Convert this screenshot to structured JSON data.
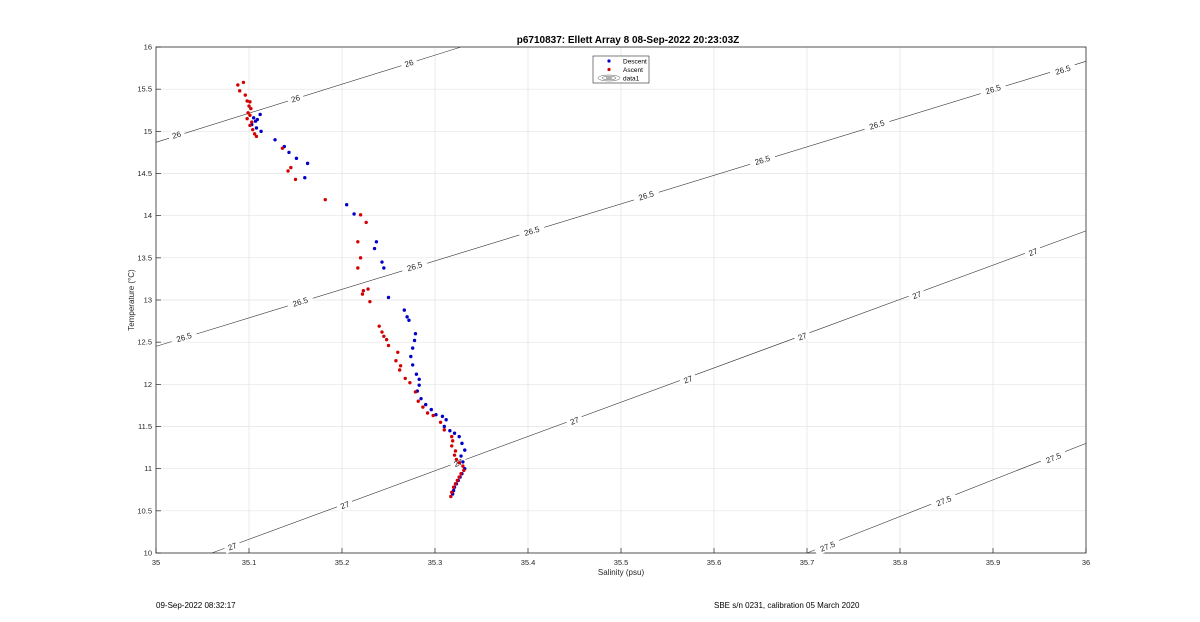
{
  "footer": {
    "left": "09-Sep-2022 08:32:17",
    "right": "SBE s/n 0231, calibration 05 March 2020"
  },
  "chart_data": {
    "type": "scatter",
    "title": "p6710837: Ellett Array 8 08-Sep-2022 20:23:03Z",
    "xlabel": "Salinity (psu)",
    "ylabel": "Temperature (°C)",
    "xlim": [
      35,
      36
    ],
    "ylim": [
      10,
      16
    ],
    "xticks": [
      "35",
      "35.1",
      "35.2",
      "35.3",
      "35.4",
      "35.5",
      "35.6",
      "35.7",
      "35.8",
      "35.9",
      "36"
    ],
    "yticks": [
      "10",
      "10.5",
      "11",
      "11.5",
      "12",
      "12.5",
      "13",
      "13.5",
      "14",
      "14.5",
      "15",
      "15.5",
      "16"
    ],
    "grid": true,
    "legend": {
      "placement": "top-center",
      "entries": [
        "Descent",
        "Ascent",
        "data1"
      ]
    },
    "colors": {
      "descent": "#0000c8",
      "ascent": "#d20000",
      "contour": "#333333",
      "grid": "#e3e3e3"
    },
    "contours": [
      {
        "level": "26",
        "points": [
          [
            35,
            14.87
          ],
          [
            35.328,
            16.0
          ]
        ],
        "labels": [
          [
            35.022,
            14.96
          ],
          [
            35.15,
            15.39
          ],
          [
            35.272,
            15.81
          ]
        ]
      },
      {
        "level": "26.5",
        "points": [
          [
            35,
            12.45
          ],
          [
            36,
            15.83
          ]
        ],
        "labels": [
          [
            35.03,
            12.56
          ],
          [
            35.155,
            12.98
          ],
          [
            35.278,
            13.4
          ],
          [
            35.404,
            13.82
          ],
          [
            35.527,
            14.24
          ],
          [
            35.652,
            14.66
          ],
          [
            35.775,
            15.08
          ],
          [
            35.9,
            15.5
          ],
          [
            35.975,
            15.73
          ]
        ]
      },
      {
        "level": "27",
        "points": [
          [
            35.06,
            10.0
          ],
          [
            36,
            13.82
          ]
        ],
        "labels": [
          [
            35.082,
            10.08
          ],
          [
            35.203,
            10.57
          ],
          [
            35.325,
            11.07
          ],
          [
            35.45,
            11.57
          ],
          [
            35.572,
            12.06
          ],
          [
            35.695,
            12.57
          ],
          [
            35.818,
            13.06
          ],
          [
            35.943,
            13.57
          ]
        ]
      },
      {
        "level": "27.5",
        "points": [
          [
            35.7,
            10.0
          ],
          [
            36,
            11.3
          ]
        ],
        "labels": [
          [
            35.722,
            10.08
          ],
          [
            35.847,
            10.62
          ],
          [
            35.965,
            11.13
          ]
        ]
      }
    ],
    "series": [
      {
        "name": "Descent",
        "points": [
          [
            35.105,
            15.16
          ],
          [
            35.107,
            15.12
          ],
          [
            35.103,
            15.08
          ],
          [
            35.109,
            15.14
          ],
          [
            35.112,
            15.2
          ],
          [
            35.108,
            15.04
          ],
          [
            35.113,
            15.0
          ],
          [
            35.128,
            14.9
          ],
          [
            35.138,
            14.82
          ],
          [
            35.143,
            14.75
          ],
          [
            35.151,
            14.68
          ],
          [
            35.163,
            14.62
          ],
          [
            35.16,
            14.45
          ],
          [
            35.205,
            14.13
          ],
          [
            35.213,
            14.02
          ],
          [
            35.237,
            13.69
          ],
          [
            35.235,
            13.61
          ],
          [
            35.243,
            13.45
          ],
          [
            35.245,
            13.38
          ],
          [
            35.25,
            13.03
          ],
          [
            35.267,
            12.88
          ],
          [
            35.27,
            12.8
          ],
          [
            35.272,
            12.76
          ],
          [
            35.279,
            12.6
          ],
          [
            35.278,
            12.52
          ],
          [
            35.276,
            12.43
          ],
          [
            35.274,
            12.33
          ],
          [
            35.276,
            12.23
          ],
          [
            35.28,
            12.12
          ],
          [
            35.283,
            12.06
          ],
          [
            35.283,
            11.99
          ],
          [
            35.281,
            11.92
          ],
          [
            35.285,
            11.83
          ],
          [
            35.29,
            11.76
          ],
          [
            35.296,
            11.7
          ],
          [
            35.301,
            11.64
          ],
          [
            35.308,
            11.62
          ],
          [
            35.312,
            11.58
          ],
          [
            35.31,
            11.5
          ],
          [
            35.316,
            11.45
          ],
          [
            35.321,
            11.42
          ],
          [
            35.326,
            11.38
          ],
          [
            35.329,
            11.3
          ],
          [
            35.332,
            11.22
          ],
          [
            35.328,
            11.15
          ],
          [
            35.33,
            11.08
          ],
          [
            35.332,
            11.0
          ],
          [
            35.329,
            10.94
          ],
          [
            35.327,
            10.9
          ],
          [
            35.325,
            10.86
          ],
          [
            35.323,
            10.82
          ],
          [
            35.321,
            10.78
          ],
          [
            35.32,
            10.74
          ],
          [
            35.319,
            10.7
          ]
        ]
      },
      {
        "name": "Ascent",
        "points": [
          [
            35.088,
            15.55
          ],
          [
            35.094,
            15.58
          ],
          [
            35.09,
            15.48
          ],
          [
            35.096,
            15.43
          ],
          [
            35.098,
            15.36
          ],
          [
            35.101,
            15.35
          ],
          [
            35.1,
            15.3
          ],
          [
            35.102,
            15.27
          ],
          [
            35.099,
            15.22
          ],
          [
            35.101,
            15.19
          ],
          [
            35.098,
            15.15
          ],
          [
            35.103,
            15.11
          ],
          [
            35.101,
            15.07
          ],
          [
            35.104,
            15.02
          ],
          [
            35.106,
            14.97
          ],
          [
            35.108,
            14.94
          ],
          [
            35.136,
            14.8
          ],
          [
            35.145,
            14.57
          ],
          [
            35.142,
            14.53
          ],
          [
            35.15,
            14.43
          ],
          [
            35.182,
            14.19
          ],
          [
            35.22,
            14.01
          ],
          [
            35.226,
            13.92
          ],
          [
            35.217,
            13.69
          ],
          [
            35.22,
            13.5
          ],
          [
            35.217,
            13.38
          ],
          [
            35.223,
            13.11
          ],
          [
            35.228,
            13.13
          ],
          [
            35.222,
            13.07
          ],
          [
            35.23,
            12.98
          ],
          [
            35.24,
            12.69
          ],
          [
            35.243,
            12.62
          ],
          [
            35.245,
            12.57
          ],
          [
            35.248,
            12.53
          ],
          [
            35.25,
            12.46
          ],
          [
            35.26,
            12.38
          ],
          [
            35.258,
            12.28
          ],
          [
            35.263,
            12.22
          ],
          [
            35.262,
            12.17
          ],
          [
            35.268,
            12.07
          ],
          [
            35.273,
            12.02
          ],
          [
            35.279,
            11.91
          ],
          [
            35.282,
            11.8
          ],
          [
            35.287,
            11.73
          ],
          [
            35.292,
            11.66
          ],
          [
            35.298,
            11.63
          ],
          [
            35.306,
            11.55
          ],
          [
            35.31,
            11.46
          ],
          [
            35.318,
            11.38
          ],
          [
            35.319,
            11.33
          ],
          [
            35.318,
            11.27
          ],
          [
            35.322,
            11.21
          ],
          [
            35.321,
            11.16
          ],
          [
            35.323,
            11.11
          ],
          [
            35.326,
            11.07
          ],
          [
            35.33,
            11.03
          ],
          [
            35.331,
            10.98
          ],
          [
            35.328,
            10.94
          ],
          [
            35.326,
            10.9
          ],
          [
            35.324,
            10.86
          ],
          [
            35.322,
            10.82
          ],
          [
            35.32,
            10.78
          ],
          [
            35.318,
            10.72
          ],
          [
            35.317,
            10.67
          ]
        ]
      }
    ]
  }
}
